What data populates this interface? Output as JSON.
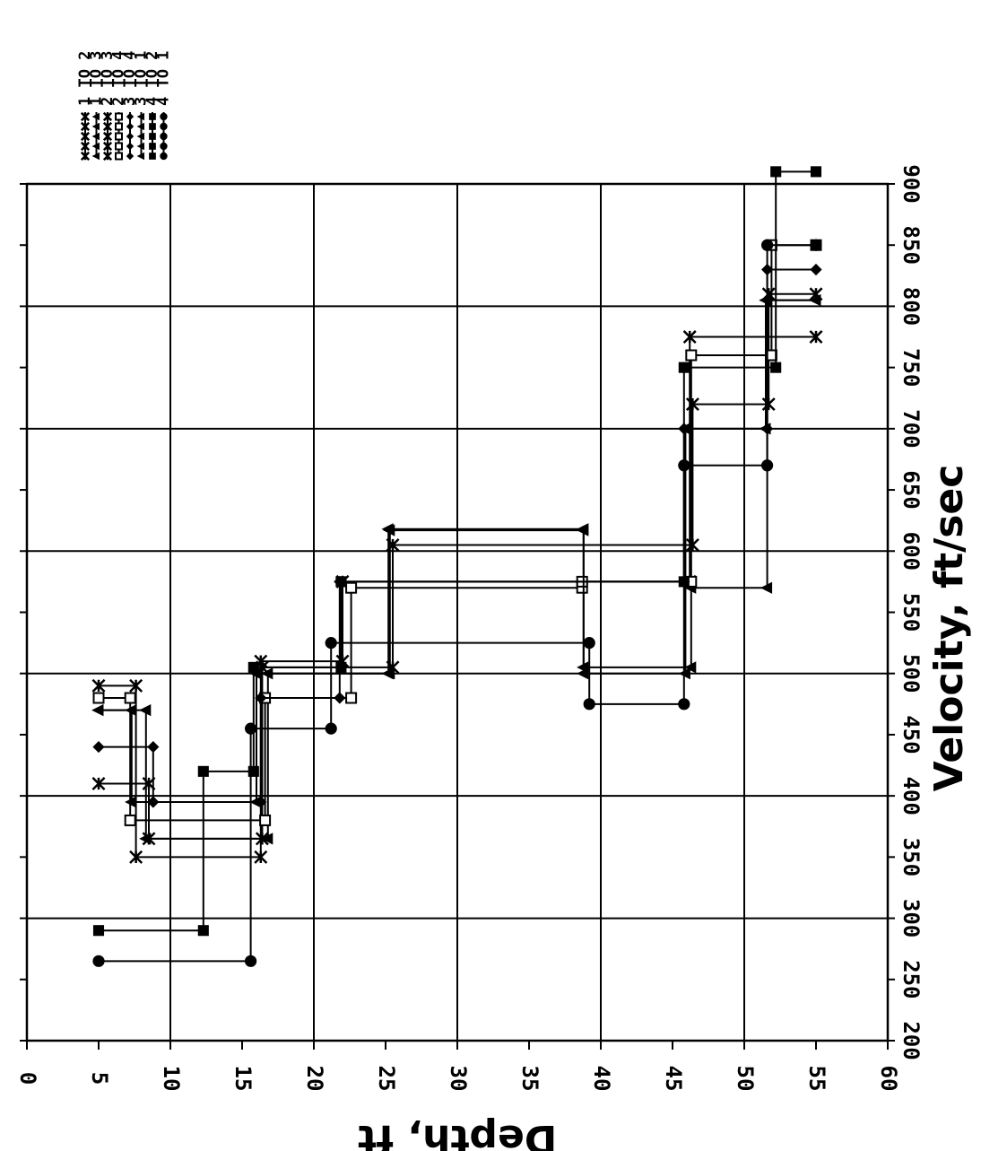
{
  "chart_data": {
    "type": "line",
    "orientation": "rotated-90-clockwise",
    "xlabel": "Depth, ft",
    "ylabel": "Velocity, ft/sec",
    "xlim": [
      0,
      60
    ],
    "ylim": [
      200,
      900
    ],
    "x_ticks": [
      "0",
      "5",
      "10",
      "15",
      "20",
      "25",
      "30",
      "35",
      "40",
      "45",
      "50",
      "55",
      "60"
    ],
    "y_ticks": [
      "200",
      "250",
      "300",
      "350",
      "400",
      "450",
      "500",
      "550",
      "600",
      "650",
      "700",
      "750",
      "800",
      "850",
      "900"
    ],
    "grid": true,
    "legend_position": "top",
    "line_color": "#000000",
    "series": [
      {
        "name": "1 TO 2",
        "marker": "star",
        "x": [
          5,
          7.6,
          7.6,
          16.3,
          16.3,
          22,
          22,
          46.2,
          46.2,
          55
        ],
        "y": [
          490,
          490,
          350,
          350,
          510,
          510,
          575,
          575,
          775,
          775
        ]
      },
      {
        "name": "1 TO 3",
        "marker": "triangle",
        "x": [
          5,
          8.3,
          8.3,
          16.8,
          16.8,
          25.2,
          25.2,
          38.8,
          38.8,
          46.3,
          46.3,
          51.6,
          51.6,
          55
        ],
        "y": [
          470,
          470,
          365,
          365,
          500,
          500,
          618,
          618,
          505,
          505,
          570,
          570,
          805,
          805
        ]
      },
      {
        "name": "2 TO 3",
        "marker": "star",
        "x": [
          5,
          8.5,
          8.5,
          16.4,
          16.4,
          25.5,
          25.5,
          46.4,
          46.4,
          51.7,
          51.7,
          55
        ],
        "y": [
          410,
          410,
          365,
          365,
          505,
          505,
          605,
          605,
          720,
          720,
          810,
          810
        ]
      },
      {
        "name": "2 TO 4",
        "marker": "open-square",
        "x": [
          5,
          7.2,
          7.2,
          16.6,
          16.6,
          22.6,
          22.6,
          38.7,
          38.7,
          46.3,
          46.3,
          51.9,
          51.9,
          55
        ],
        "y": [
          480,
          480,
          380,
          380,
          480,
          480,
          570,
          570,
          575,
          575,
          760,
          760,
          850,
          850
        ]
      },
      {
        "name": "3 TO 4",
        "marker": "diamond",
        "x": [
          5,
          8.8,
          8.8,
          16.3,
          16.3,
          21.8,
          21.8,
          45.8,
          45.8,
          51.6,
          51.6,
          55
        ],
        "y": [
          440,
          440,
          395,
          395,
          480,
          480,
          575,
          575,
          700,
          700,
          830,
          830
        ]
      },
      {
        "name": "3 TO 1",
        "marker": "triangle",
        "x": [
          5,
          7.3,
          7.3,
          16.0,
          16.0,
          25.3,
          25.3,
          38.8,
          38.8,
          45.9,
          45.9,
          51.5,
          51.5,
          55
        ],
        "y": [
          470,
          470,
          395,
          395,
          500,
          500,
          617,
          617,
          500,
          500,
          700,
          700,
          805,
          805
        ]
      },
      {
        "name": "4 TO 2",
        "marker": "filled-square",
        "x": [
          5,
          12.3,
          12.3,
          15.8,
          15.8,
          21.9,
          21.9,
          45.8,
          45.8,
          52.2,
          52.2,
          55
        ],
        "y": [
          290,
          290,
          420,
          420,
          505,
          505,
          575,
          575,
          750,
          750,
          910,
          910
        ]
      },
      {
        "name": "4 TO 1",
        "marker": "circle",
        "x": [
          5,
          15.6,
          15.6,
          21.2,
          21.2,
          39.2,
          39.2,
          45.8,
          45.8,
          51.6,
          51.6,
          55
        ],
        "y": [
          265,
          265,
          455,
          455,
          525,
          525,
          475,
          475,
          670,
          670,
          850,
          850
        ]
      }
    ]
  }
}
